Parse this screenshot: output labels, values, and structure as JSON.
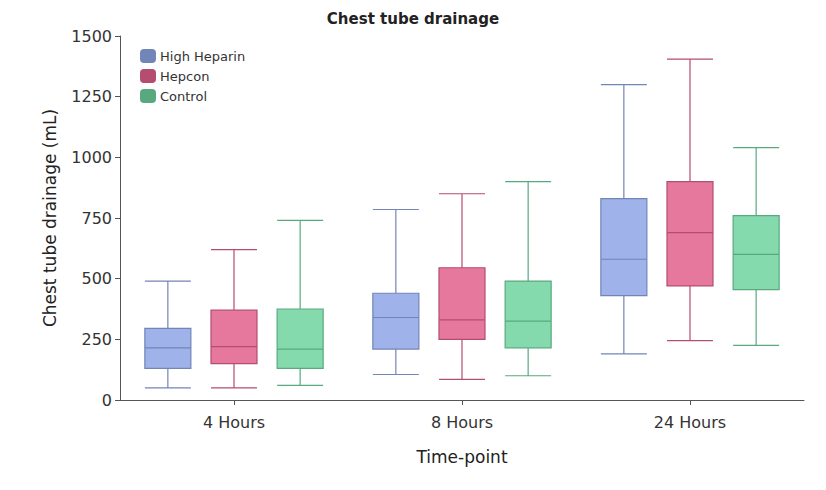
{
  "chart_data": {
    "type": "boxplot",
    "title": "Chest tube drainage",
    "x_label": "Time-point",
    "y_label": "Chest tube drainage (mL)",
    "categories": [
      "4 Hours",
      "8 Hours",
      "24 Hours"
    ],
    "series": [
      {
        "name": "High Heparin",
        "color": "#8ea6e6",
        "values": [
          [
            50,
            130,
            215,
            295,
            490
          ],
          [
            105,
            210,
            340,
            440,
            785
          ],
          [
            190,
            430,
            580,
            830,
            1300
          ]
        ]
      },
      {
        "name": "Hepcon",
        "color": "#e2608c",
        "values": [
          [
            50,
            150,
            220,
            370,
            620
          ],
          [
            85,
            250,
            330,
            545,
            850
          ],
          [
            245,
            470,
            690,
            900,
            1405
          ]
        ]
      },
      {
        "name": "Control",
        "color": "#6fd39f",
        "values": [
          [
            60,
            130,
            210,
            375,
            740
          ],
          [
            100,
            215,
            325,
            490,
            900
          ],
          [
            225,
            455,
            600,
            760,
            1040
          ]
        ]
      }
    ],
    "ylim": [
      0,
      1500
    ],
    "yticks": [
      0,
      250,
      500,
      750,
      1000,
      1250,
      1500
    ],
    "grid": false,
    "legend": "top-left"
  }
}
